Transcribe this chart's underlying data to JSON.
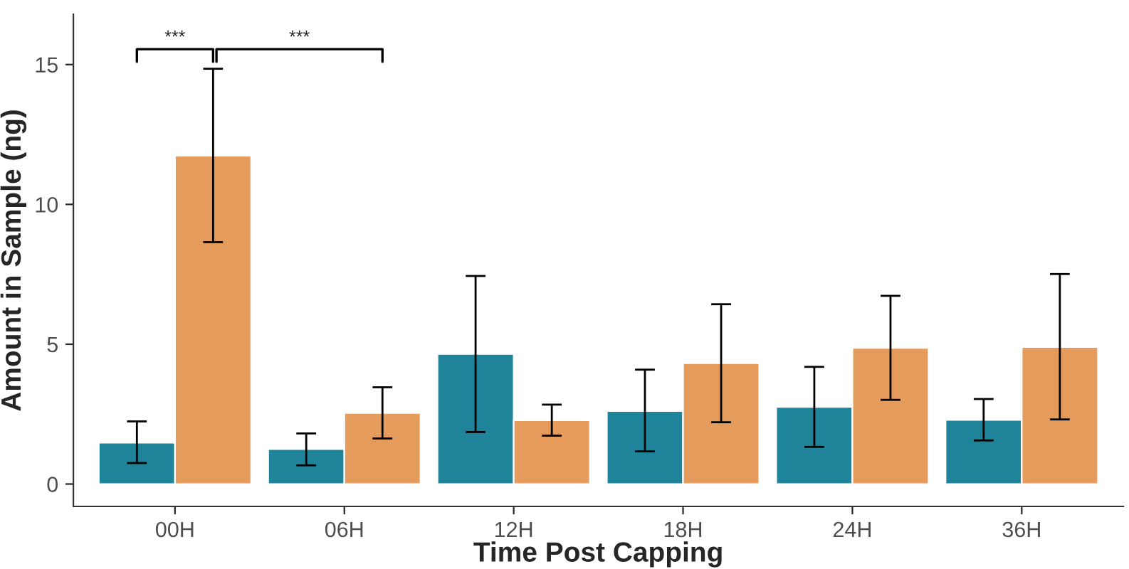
{
  "chart_data": {
    "type": "bar",
    "xlabel": "Time Post Capping",
    "ylabel": "Amount in Sample (ng)",
    "categories": [
      "00H",
      "06H",
      "12H",
      "18H",
      "24H",
      "36H"
    ],
    "series": [
      {
        "color": "#1f8499",
        "values": [
          1.48,
          1.25,
          4.65,
          2.61,
          2.76,
          2.29
        ],
        "errors": [
          [
            0.75,
            2.24
          ],
          [
            0.67,
            1.81
          ],
          [
            1.86,
            7.44
          ],
          [
            1.17,
            4.09
          ],
          [
            1.33,
            4.19
          ],
          [
            1.56,
            3.04
          ]
        ]
      },
      {
        "color": "#e59b5b",
        "values": [
          11.74,
          2.54,
          2.28,
          4.32,
          4.87,
          4.9
        ],
        "errors": [
          [
            8.65,
            14.85
          ],
          [
            1.63,
            3.46
          ],
          [
            1.73,
            2.84
          ],
          [
            2.21,
            6.43
          ],
          [
            3.01,
            6.73
          ],
          [
            2.31,
            7.51
          ]
        ]
      }
    ],
    "ylim": [
      -0.8,
      16.8
    ],
    "yticks": [
      0,
      5,
      10,
      15
    ],
    "grid": false,
    "legend": false,
    "annotations": [
      "***",
      "***"
    ]
  }
}
